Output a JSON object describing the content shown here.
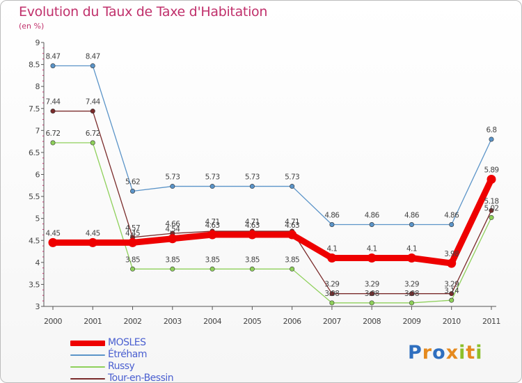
{
  "title": "Evolution du Taux de Taxe d'Habitation",
  "subtitle": "(en %)",
  "logo": {
    "letters": [
      {
        "ch": "P",
        "color": "#2f6fbf"
      },
      {
        "ch": "r",
        "color": "#e58a1f"
      },
      {
        "ch": "o",
        "color": "#2f6fbf"
      },
      {
        "ch": "x",
        "color": "#e58a1f"
      },
      {
        "ch": "i",
        "color": "#8cbf2a"
      },
      {
        "ch": "t",
        "color": "#e58a1f"
      },
      {
        "ch": "i",
        "color": "#8cbf2a"
      }
    ]
  },
  "chart_data": {
    "type": "line",
    "x": [
      "2000",
      "2001",
      "2002",
      "2003",
      "2004",
      "2005",
      "2006",
      "2007",
      "2008",
      "2009",
      "2010",
      "2011"
    ],
    "ylim": [
      3,
      9
    ],
    "yticks": [
      "3",
      "3.5",
      "4",
      "4.5",
      "5",
      "5.5",
      "6",
      "6.5",
      "7",
      "7.5",
      "8",
      "8.5",
      "9"
    ],
    "grid": "none",
    "legend": "bottom-left",
    "series": [
      {
        "name": "Étréham",
        "color": "#5b94c8",
        "values": [
          8.47,
          8.47,
          5.62,
          5.73,
          5.73,
          5.73,
          5.73,
          4.86,
          4.86,
          4.86,
          4.86,
          6.8
        ],
        "labels": [
          "8.47",
          "8.47",
          "5.62",
          "5.73",
          "5.73",
          "5.73",
          "5.73",
          "4.86",
          "4.86",
          "4.86",
          "4.86",
          "6.8"
        ]
      },
      {
        "name": "Tour-en-Bessin",
        "color": "#7a2b2b",
        "values": [
          7.44,
          7.44,
          4.57,
          4.66,
          4.71,
          4.71,
          4.71,
          3.29,
          3.29,
          3.29,
          3.29,
          5.18
        ],
        "labels": [
          "7.44",
          "7.44",
          "4.57",
          "4.66",
          "4.71",
          "4.71",
          "4.71",
          "3.29",
          "3.29",
          "3.29",
          "3.29",
          "5.18"
        ]
      },
      {
        "name": "Russy",
        "color": "#8ed05a",
        "values": [
          6.72,
          6.72,
          3.85,
          3.85,
          3.85,
          3.85,
          3.85,
          3.08,
          3.08,
          3.08,
          3.14,
          5.02
        ],
        "labels": [
          "6.72",
          "6.72",
          "3.85",
          "3.85",
          "3.85",
          "3.85",
          "3.85",
          "3.08",
          "3.08",
          "3.08",
          "3.14",
          "5.02"
        ]
      },
      {
        "name": "MOSLES",
        "color": "#ee0000",
        "values": [
          4.45,
          4.45,
          4.45,
          4.54,
          4.63,
          4.63,
          4.63,
          4.1,
          4.1,
          4.1,
          3.98,
          5.89
        ],
        "labels": [
          "4.45",
          "4.45",
          "4.45",
          "4.54",
          "4.63",
          "4.63",
          "4.63",
          "4.1",
          "4.1",
          "4.1",
          "3.98",
          "5.89"
        ]
      }
    ],
    "legend_order": [
      "MOSLES",
      "Étréham",
      "Russy",
      "Tour-en-Bessin"
    ]
  }
}
